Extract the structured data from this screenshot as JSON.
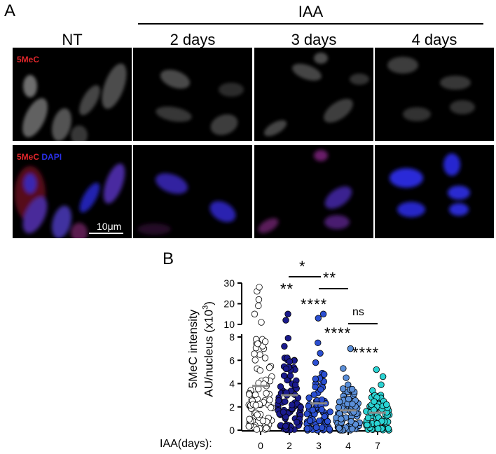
{
  "panel_a": {
    "letter": "A",
    "iaa_label": "IAA",
    "columns": [
      "NT",
      "2 days",
      "3 days",
      "4 days"
    ],
    "row1_label": {
      "stain": "5MeC"
    },
    "row2_label": {
      "stain": "5MeC",
      "dapi": "DAPI"
    },
    "scale_bar": "10μm"
  },
  "panel_b": {
    "letter": "B",
    "ylabel_line1": "5MeC intensity",
    "ylabel_line2": "AU/nucleus (x10",
    "ylabel_sup": "3",
    "ylabel_end": ")",
    "xaxis_title": "IAA(days):",
    "significance": {
      "d2_vs_0": "**",
      "d2_vs_3": "*",
      "d3_vs_4": "**",
      "d3_vs_0": "****",
      "d4_vs_7": "ns",
      "d4_vs_0": "****",
      "d7_vs_0": "****"
    }
  },
  "chart_data": {
    "type": "scatter",
    "categories": [
      "0",
      "2",
      "3",
      "4",
      "7"
    ],
    "ylim": [
      0,
      30
    ],
    "axis_break": [
      8,
      10
    ],
    "yticks_lower": [
      0,
      2,
      4,
      6,
      8
    ],
    "yticks_upper": [
      10,
      20,
      30
    ],
    "medians": [
      3.8,
      3.0,
      2.3,
      1.7,
      1.5
    ],
    "series": [
      {
        "values": [
          3.8,
          0.5,
          1.2,
          2.4,
          3.1,
          4.6,
          5.5,
          6.2,
          7.0,
          7.8,
          11,
          15,
          19,
          22,
          26,
          28
        ],
        "color": "#ffffff"
      },
      {
        "values": [
          3.0,
          0.4,
          1.0,
          2.0,
          2.8,
          3.6,
          4.4,
          5.2,
          6.0,
          7.2,
          7.9,
          12,
          15
        ],
        "color": "#1a1a8c"
      },
      {
        "values": [
          2.3,
          0.3,
          0.9,
          1.6,
          2.5,
          3.2,
          4.0,
          4.9,
          5.8,
          6.6,
          7.5,
          13,
          15
        ],
        "color": "#2b4fd1"
      },
      {
        "values": [
          1.7,
          0.2,
          0.8,
          1.3,
          2.0,
          2.6,
          3.2,
          3.9,
          4.5,
          5.3,
          7.0
        ],
        "color": "#5b8fd9"
      },
      {
        "values": [
          1.5,
          0.2,
          0.6,
          1.1,
          1.7,
          2.3,
          2.9,
          3.4,
          3.9,
          4.6,
          5.2
        ],
        "color": "#2ad3d3"
      }
    ]
  }
}
